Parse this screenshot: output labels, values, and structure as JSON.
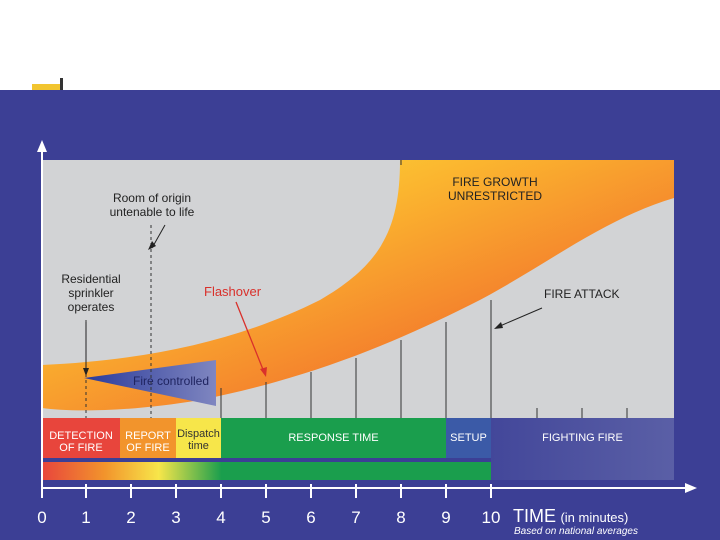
{
  "colors": {
    "background": "#3c3f95",
    "panel": "#d2d3d5",
    "detection": "#e8453c",
    "report": "#f2942c",
    "dispatch": "#f7e64a",
    "response": "#1a9e4d",
    "setup": "#3b5aa7",
    "fighting": "#4a4f9a",
    "flashover_text": "#d9302b"
  },
  "annotations": {
    "room_of_origin_1": "Room of origin",
    "room_of_origin_2": "untenable to life",
    "sprinkler_1": "Residential",
    "sprinkler_2": "sprinkler",
    "sprinkler_3": "operates",
    "flashover": "Flashover",
    "fire_growth_1": "FIRE GROWTH",
    "fire_growth_2": "UNRESTRICTED",
    "fire_attack": "FIRE ATTACK",
    "fire_controlled": "Fire controlled"
  },
  "phases": {
    "detection_1": "DETECTION",
    "detection_2": "OF FIRE",
    "report_1": "REPORT",
    "report_2": "OF FIRE",
    "dispatch_1": "Dispatch",
    "dispatch_2": "time",
    "response": "RESPONSE TIME",
    "setup": "SETUP",
    "fighting": "FIGHTING FIRE"
  },
  "axis": {
    "ticks": [
      "0",
      "1",
      "2",
      "3",
      "4",
      "5",
      "6",
      "7",
      "8",
      "9",
      "10"
    ],
    "time_label": "TIME",
    "time_unit": "(in minutes)",
    "footnote": "Based on national averages"
  }
}
